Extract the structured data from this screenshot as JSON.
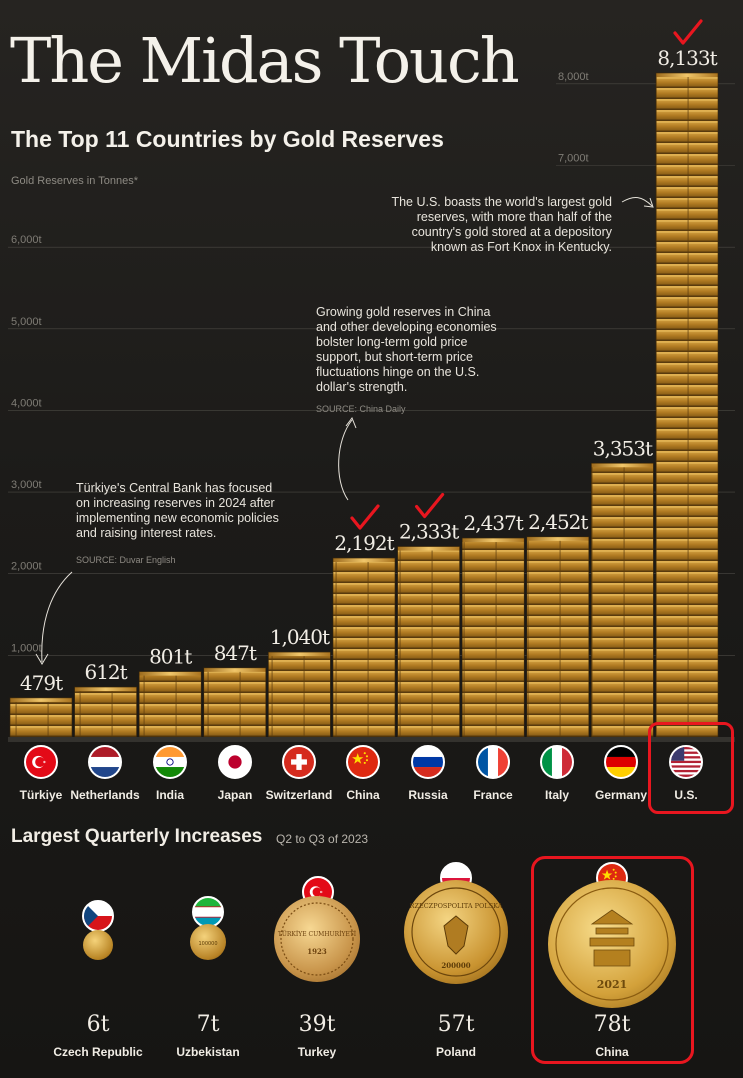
{
  "header": {
    "title": "The Midas Touch",
    "subtitle": "The Top 11 Countries by Gold Reserves",
    "unit_label": "Gold Reserves in Tonnes*"
  },
  "chart_data": [
    {
      "type": "bar",
      "title": "The Top 11 Countries by Gold Reserves",
      "ylabel": "Gold Reserves in Tonnes*",
      "categories": [
        "Türkiye",
        "Netherlands",
        "India",
        "Japan",
        "Switzerland",
        "China",
        "Russia",
        "France",
        "Italy",
        "Germany",
        "U.S."
      ],
      "values": [
        479,
        612,
        801,
        847,
        1040,
        2192,
        2333,
        2437,
        2452,
        3353,
        8133
      ],
      "value_labels": [
        "479t",
        "612t",
        "801t",
        "847t",
        "1,040t",
        "2,192t",
        "2,333t",
        "2,437t",
        "2,452t",
        "3,353t",
        "8,133t"
      ],
      "yticks": [
        1000,
        2000,
        3000,
        4000,
        5000,
        6000,
        7000,
        8000
      ],
      "ytick_labels": [
        "1,000t",
        "2,000t",
        "3,000t",
        "4,000t",
        "5,000t",
        "6,000t",
        "7,000t",
        "8,000t"
      ],
      "ylim": [
        0,
        8133
      ],
      "grid": true,
      "marked_with_check": [
        "China",
        "Russia",
        "U.S."
      ],
      "boxed": [
        "U.S."
      ],
      "annotations": [
        {
          "text": "Türkiye's Central Bank has focused on increasing reserves in 2024 after implementing new economic policies and raising interest rates.",
          "source": "SOURCE: Duvar English",
          "target": "Türkiye"
        },
        {
          "text": "Growing gold reserves in China and other developing economies bolster long-term gold price support, but short-term price fluctuations hinge on the U.S. dollar's strength.",
          "source": "SOURCE: China Daily",
          "target": "China"
        },
        {
          "text": "The U.S. boasts the world's largest gold reserves, with more than half of the country's gold stored at a depository known as Fort Knox in Kentucky.",
          "target": "U.S."
        }
      ]
    },
    {
      "type": "bar",
      "title": "Largest Quarterly Increases",
      "subtitle": "Q2 to Q3 of 2023",
      "categories": [
        "Czech Republic",
        "Uzbekistan",
        "Turkey",
        "Poland",
        "China"
      ],
      "values": [
        6,
        7,
        39,
        57,
        78
      ],
      "value_labels": [
        "6t",
        "7t",
        "39t",
        "57t",
        "78t"
      ],
      "boxed": [
        "China"
      ]
    }
  ],
  "increases": {
    "title": "Largest Quarterly Increases",
    "period": "Q2 to Q3 of 2023"
  },
  "coins": {
    "turkey_text": "TÜRKİYE CUMHURİYETİ",
    "turkey_year": "1923",
    "poland_text": "RZECZPOSPOLITA POLSKA",
    "poland_value": "200000",
    "china_year": "2021",
    "uzbek_value": "100000"
  },
  "colors": {
    "background": "#1b1a18",
    "gold": "#c9952f",
    "highlight": "#e8161f",
    "text": "#f1ede5"
  }
}
